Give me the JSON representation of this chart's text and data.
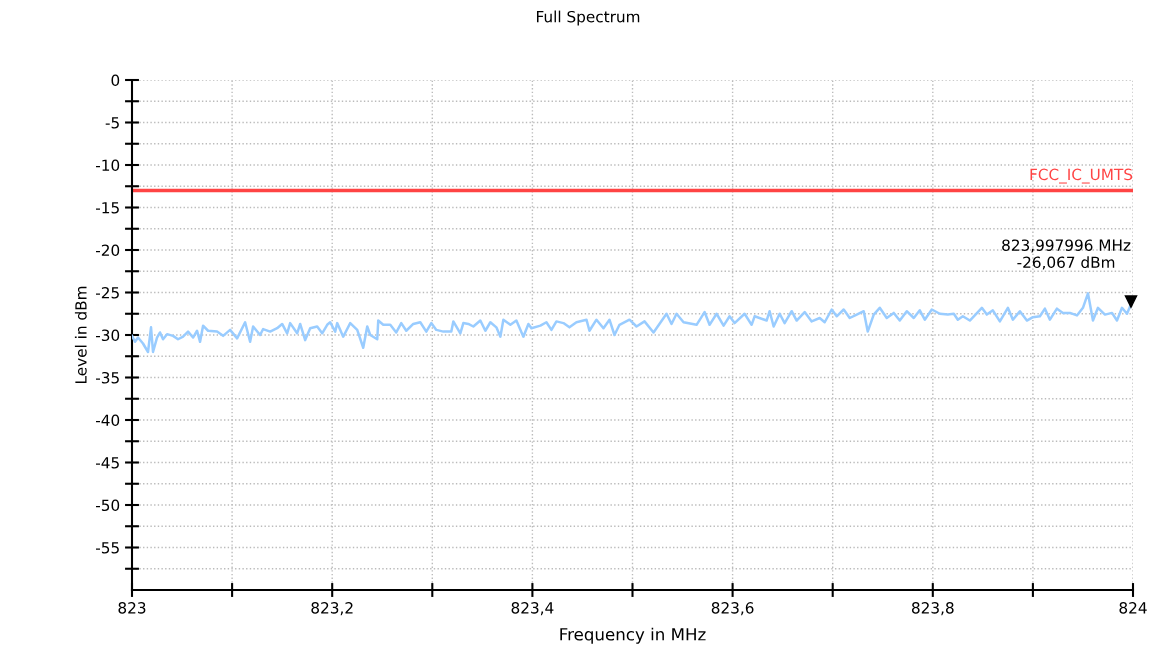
{
  "chart_data": {
    "type": "line",
    "title": "Full Spectrum",
    "xlabel": "Frequency in MHz",
    "ylabel": "Level in dBm",
    "xlim": [
      823,
      824
    ],
    "ylim": [
      -60,
      0
    ],
    "xticks": [
      {
        "value": 823,
        "label": "823"
      },
      {
        "value": 823.1,
        "label": null
      },
      {
        "value": 823.2,
        "label": "823,2"
      },
      {
        "value": 823.3,
        "label": null
      },
      {
        "value": 823.4,
        "label": "823,4"
      },
      {
        "value": 823.5,
        "label": null
      },
      {
        "value": 823.6,
        "label": "823,6"
      },
      {
        "value": 823.7,
        "label": null
      },
      {
        "value": 823.8,
        "label": "823,8"
      },
      {
        "value": 823.9,
        "label": null
      },
      {
        "value": 824,
        "label": "824"
      }
    ],
    "yticks": [
      0,
      {
        "value": -2.5,
        "label": null
      },
      -5,
      {
        "value": -7.5,
        "label": null
      },
      -10,
      {
        "value": -12.5,
        "label": null
      },
      -15,
      {
        "value": -17.5,
        "label": null
      },
      -20,
      {
        "value": -22.5,
        "label": null
      },
      -25,
      {
        "value": -27.5,
        "label": null
      },
      -30,
      {
        "value": -32.5,
        "label": null
      },
      -35,
      {
        "value": -37.5,
        "label": null
      },
      -40,
      {
        "value": -42.5,
        "label": null
      },
      -45,
      {
        "value": -47.5,
        "label": null
      },
      -50,
      {
        "value": -52.5,
        "label": null
      },
      -55,
      {
        "value": -57.5,
        "label": null
      }
    ],
    "grid": true,
    "legend": false,
    "marker": "none",
    "line_style": "solid",
    "ref_lines": [
      {
        "axis": "y",
        "value": -13,
        "label": "FCC_IC_UMTS",
        "color": "#ff4444"
      }
    ],
    "annotations": [
      {
        "text": "823,997996 MHz\n-26,067 dBm",
        "x": 823.997996,
        "y": -26.067
      }
    ],
    "series": [
      {
        "color": "#99ccff",
        "x": [
          823.0,
          823.003,
          823.006,
          823.011,
          823.016,
          823.019,
          823.021,
          823.025,
          823.028,
          823.031,
          823.035,
          823.041,
          823.046,
          823.051,
          823.056,
          823.061,
          823.065,
          823.068,
          823.071,
          823.076,
          823.085,
          823.091,
          823.098,
          823.105,
          823.113,
          823.118,
          823.121,
          823.128,
          823.131,
          823.138,
          823.145,
          823.15,
          823.155,
          823.158,
          823.165,
          823.168,
          823.173,
          823.178,
          823.185,
          823.19,
          823.195,
          823.198,
          823.203,
          823.205,
          823.211,
          823.218,
          823.225,
          823.231,
          823.235,
          823.238,
          823.245,
          823.246,
          823.251,
          823.258,
          823.264,
          823.269,
          823.274,
          823.281,
          823.288,
          823.294,
          823.299,
          823.304,
          823.311,
          823.319,
          823.321,
          823.328,
          823.331,
          823.336,
          823.341,
          823.348,
          823.353,
          823.358,
          823.364,
          823.368,
          823.371,
          823.378,
          823.384,
          823.391,
          823.396,
          823.399,
          823.408,
          823.414,
          823.419,
          823.424,
          823.431,
          823.437,
          823.444,
          823.454,
          823.457,
          823.464,
          823.471,
          823.477,
          823.482,
          823.487,
          823.497,
          823.504,
          823.512,
          823.521,
          823.534,
          823.539,
          823.544,
          823.551,
          823.564,
          823.572,
          823.577,
          823.584,
          823.591,
          823.597,
          823.602,
          823.612,
          823.619,
          823.622,
          823.634,
          823.637,
          823.641,
          823.647,
          823.652,
          823.659,
          823.664,
          823.672,
          823.679,
          823.687,
          823.692,
          823.699,
          823.704,
          823.711,
          823.717,
          823.724,
          823.731,
          823.735,
          823.741,
          823.747,
          823.754,
          823.761,
          823.767,
          823.774,
          823.781,
          823.787,
          823.792,
          823.799,
          823.807,
          823.815,
          823.821,
          823.825,
          823.83,
          823.837,
          823.849,
          823.854,
          823.86,
          823.867,
          823.875,
          823.88,
          823.887,
          823.894,
          823.9,
          823.907,
          823.912,
          823.917,
          823.924,
          823.93,
          823.937,
          823.944,
          823.95,
          823.955,
          823.96,
          823.965,
          823.972,
          823.979,
          823.984,
          823.989,
          823.994,
          823.999
        ],
        "values": [
          -30.1,
          -30.8,
          -30.3,
          -31.0,
          -32.0,
          -29.1,
          -32.0,
          -30.3,
          -29.7,
          -30.5,
          -29.9,
          -30.1,
          -30.5,
          -30.2,
          -29.6,
          -30.3,
          -29.5,
          -30.8,
          -28.9,
          -29.5,
          -29.6,
          -30.1,
          -29.4,
          -30.4,
          -28.5,
          -30.8,
          -29.0,
          -30.0,
          -29.3,
          -29.6,
          -29.2,
          -28.7,
          -29.8,
          -28.6,
          -29.8,
          -28.7,
          -30.6,
          -29.2,
          -29.0,
          -29.8,
          -28.8,
          -28.5,
          -29.6,
          -28.6,
          -30.2,
          -28.6,
          -29.4,
          -31.5,
          -29.0,
          -30.0,
          -30.5,
          -28.3,
          -28.8,
          -28.8,
          -29.7,
          -28.6,
          -29.5,
          -28.7,
          -28.5,
          -29.6,
          -28.6,
          -29.4,
          -29.6,
          -29.6,
          -28.4,
          -29.8,
          -28.6,
          -28.7,
          -29.0,
          -28.3,
          -29.5,
          -28.5,
          -29.1,
          -30.2,
          -28.2,
          -28.8,
          -28.3,
          -30.2,
          -28.7,
          -29.2,
          -28.9,
          -28.5,
          -29.4,
          -28.4,
          -28.6,
          -29.1,
          -28.5,
          -28.2,
          -29.5,
          -28.2,
          -29.2,
          -28.2,
          -30.0,
          -28.8,
          -28.2,
          -29.0,
          -28.4,
          -29.7,
          -27.5,
          -28.7,
          -27.5,
          -28.5,
          -28.8,
          -27.3,
          -28.8,
          -27.5,
          -28.9,
          -27.8,
          -28.6,
          -27.5,
          -28.8,
          -27.8,
          -28.3,
          -27.2,
          -29.0,
          -27.5,
          -28.6,
          -27.2,
          -28.3,
          -27.3,
          -28.4,
          -28.0,
          -28.5,
          -27.0,
          -27.8,
          -27.0,
          -28.0,
          -27.6,
          -27.2,
          -29.6,
          -27.6,
          -26.8,
          -28.0,
          -27.4,
          -28.3,
          -27.2,
          -28.0,
          -27.1,
          -28.2,
          -27.0,
          -27.5,
          -27.6,
          -27.5,
          -28.2,
          -27.8,
          -28.3,
          -26.8,
          -27.6,
          -27.1,
          -28.4,
          -26.8,
          -28.2,
          -27.2,
          -28.3,
          -27.9,
          -27.8,
          -26.9,
          -28.2,
          -26.9,
          -27.4,
          -27.4,
          -27.7,
          -26.8,
          -25.1,
          -28.3,
          -26.8,
          -27.6,
          -27.4,
          -28.3,
          -26.8,
          -27.5,
          -26.1
        ]
      }
    ]
  }
}
